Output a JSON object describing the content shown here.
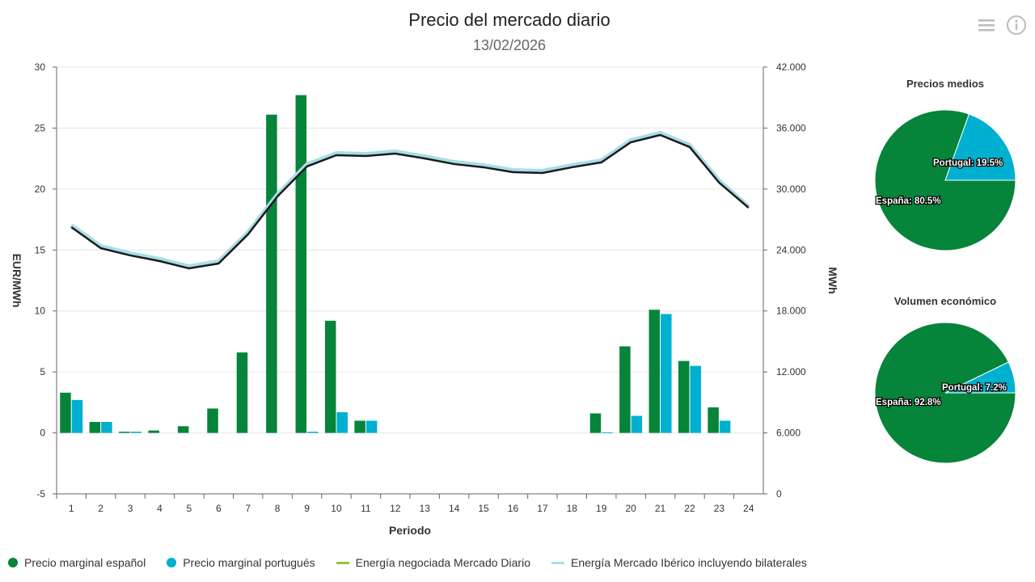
{
  "header": {
    "title": "Precio del mercado diario",
    "subtitle": "13/02/2026"
  },
  "toolbar": {
    "menu_icon": "hamburger-menu-icon",
    "info_icon": "info-icon"
  },
  "colors": {
    "spain": "#05843a",
    "portugal": "#00b0d0",
    "energy_daily": "#1a1a1a",
    "energy_iberian": "#a8dde8",
    "legend_energy_daily": "#8dc63f"
  },
  "legend": [
    {
      "label": "Precio marginal español"
    },
    {
      "label": "Precio marginal portugués"
    },
    {
      "label": "Energía negociada Mercado Diario"
    },
    {
      "label": "Energía Mercado Ibérico incluyendo bilaterales"
    }
  ],
  "chart_data": [
    {
      "type": "bar+line",
      "xlabel": "Periodo",
      "ylabel": "EUR/MWh",
      "y2label": "MWh",
      "ylim": [
        -5,
        30
      ],
      "y2lim": [
        0,
        42000
      ],
      "yticks": [
        "-5",
        "0",
        "5",
        "10",
        "15",
        "20",
        "25",
        "30"
      ],
      "y2ticks": [
        "0",
        "6.000",
        "12.000",
        "18.000",
        "24.000",
        "30.000",
        "36.000",
        "42.000"
      ],
      "categories": [
        "1",
        "2",
        "3",
        "4",
        "5",
        "6",
        "7",
        "8",
        "9",
        "10",
        "11",
        "12",
        "13",
        "14",
        "15",
        "16",
        "17",
        "18",
        "19",
        "20",
        "21",
        "22",
        "23",
        "24"
      ],
      "grid": true,
      "legend_position": "bottom",
      "series": [
        {
          "name": "Precio marginal español",
          "type": "bar",
          "axis": "left",
          "values": [
            3.3,
            0.9,
            0.1,
            0.2,
            0.55,
            2.0,
            6.6,
            26.1,
            27.7,
            9.2,
            1.0,
            0,
            0,
            0,
            0,
            0,
            0,
            0,
            1.6,
            7.1,
            10.1,
            5.9,
            2.1,
            0
          ]
        },
        {
          "name": "Precio marginal portugués",
          "type": "bar",
          "axis": "left",
          "values": [
            2.7,
            0.9,
            0.1,
            0,
            0,
            0,
            0,
            0,
            0.1,
            1.7,
            1.0,
            0,
            0,
            0,
            0,
            0,
            0,
            0,
            0.05,
            1.4,
            9.75,
            5.5,
            1.0,
            0
          ]
        },
        {
          "name": "Energía negociada Mercado Diario",
          "type": "line",
          "axis": "right",
          "values": [
            26250,
            24180,
            23470,
            22910,
            22190,
            22670,
            25540,
            29270,
            32220,
            33330,
            33250,
            33490,
            33010,
            32460,
            32140,
            31660,
            31580,
            32140,
            32620,
            34600,
            35320,
            34130,
            30630,
            28160
          ]
        },
        {
          "name": "Energía Mercado Ibérico incluyendo bilaterales",
          "type": "line",
          "axis": "right",
          "values": [
            26450,
            24380,
            23670,
            23110,
            22390,
            22870,
            25740,
            29470,
            32420,
            33530,
            33450,
            33690,
            33210,
            32660,
            32340,
            31860,
            31780,
            32340,
            32820,
            34800,
            35520,
            34330,
            30830,
            28260
          ]
        }
      ]
    },
    {
      "type": "pie",
      "title": "Precios medios",
      "slices": [
        {
          "name": "España",
          "value": 80.5,
          "label": "España: 80.5%"
        },
        {
          "name": "Portugal",
          "value": 19.5,
          "label": "Portugal: 19.5%"
        }
      ]
    },
    {
      "type": "pie",
      "title": "Volumen económico",
      "slices": [
        {
          "name": "España",
          "value": 92.8,
          "label": "España: 92.8%"
        },
        {
          "name": "Portugal",
          "value": 7.2,
          "label": "Portugal: 7.2%"
        }
      ]
    }
  ]
}
